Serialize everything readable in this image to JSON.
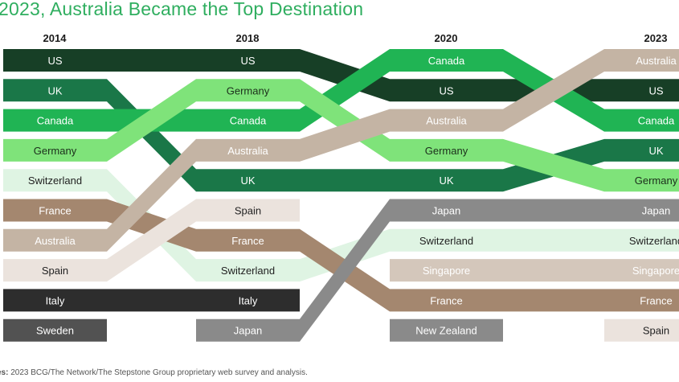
{
  "title": "2023, Australia Became the Top Destination",
  "source": {
    "prefix": "es:",
    "text": "2023 BCG/The Network/The Stepstone Group proprietary web survey and analysis."
  },
  "chart_data": {
    "type": "bump",
    "years": [
      "2014",
      "2018",
      "2020",
      "2023"
    ],
    "y_axis": "rank",
    "series": [
      {
        "name": "US",
        "color": "#173f26",
        "text": "#ffffff",
        "ranks": [
          1,
          1,
          2,
          2
        ]
      },
      {
        "name": "UK",
        "color": "#1a7748",
        "text": "#ffffff",
        "ranks": [
          2,
          5,
          5,
          4
        ]
      },
      {
        "name": "Canada",
        "color": "#20b454",
        "text": "#ffffff",
        "ranks": [
          3,
          3,
          1,
          3
        ]
      },
      {
        "name": "Germany",
        "color": "#7fe37a",
        "text": "#1b2e1b",
        "ranks": [
          4,
          2,
          4,
          5
        ]
      },
      {
        "name": "Switzerland",
        "color": "#dff4e3",
        "text": "#222222",
        "ranks": [
          5,
          8,
          7,
          7
        ]
      },
      {
        "name": "France",
        "color": "#a4876f",
        "text": "#ffffff",
        "ranks": [
          6,
          7,
          9,
          9
        ]
      },
      {
        "name": "Australia",
        "color": "#c4b4a4",
        "text": "#ffffff",
        "ranks": [
          7,
          4,
          3,
          1
        ]
      },
      {
        "name": "Spain",
        "color": "#ebe3dd",
        "text": "#222222",
        "ranks": [
          8,
          6,
          null,
          10
        ]
      },
      {
        "name": "Italy",
        "color": "#2d2d2d",
        "text": "#ffffff",
        "ranks": [
          9,
          9,
          null,
          null
        ]
      },
      {
        "name": "Sweden",
        "color": "#525252",
        "text": "#ffffff",
        "ranks": [
          10,
          null,
          null,
          null
        ]
      },
      {
        "name": "Japan",
        "color": "#8a8a8a",
        "text": "#ffffff",
        "ranks": [
          null,
          10,
          6,
          6
        ]
      },
      {
        "name": "Singapore",
        "color": "#d4c7bb",
        "text": "#ffffff",
        "ranks": [
          null,
          null,
          8,
          8
        ]
      },
      {
        "name": "New Zealand",
        "color": "#8a8a8a",
        "text": "#ffffff",
        "ranks": [
          null,
          null,
          10,
          null
        ]
      }
    ]
  }
}
